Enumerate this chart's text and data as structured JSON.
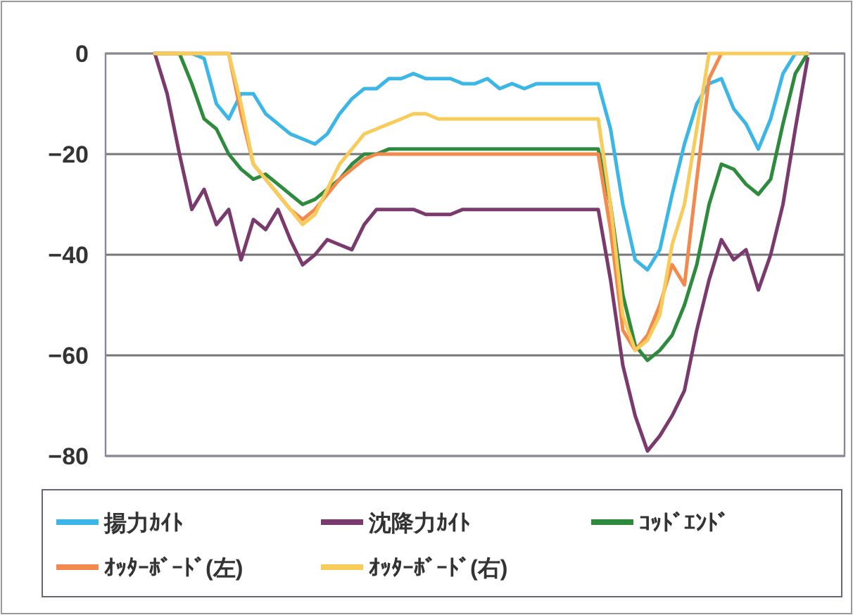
{
  "chart_data": {
    "type": "line",
    "categories": [
      null,
      null,
      null,
      null,
      null,
      null,
      null,
      null,
      null,
      null,
      null,
      null,
      null,
      null,
      null,
      null,
      null,
      null,
      null,
      null,
      null,
      null,
      null,
      null,
      null,
      null,
      null,
      null,
      null,
      null,
      null,
      null,
      null,
      null,
      null,
      null,
      null,
      null,
      null,
      null,
      null,
      null,
      null,
      null,
      null,
      null,
      null,
      null,
      null,
      null,
      null,
      null,
      null,
      null,
      null,
      null,
      null,
      null,
      null,
      null,
      null
    ],
    "ylim": [
      -80,
      0
    ],
    "yticks": [
      0,
      -20,
      -40,
      -60,
      -80
    ],
    "grid": "y",
    "legend": "bottom",
    "line_style": "solid",
    "series": [
      {
        "name": "揚力ｶｲﾄ",
        "color": "#3bb6e6",
        "values": [
          null,
          null,
          null,
          null,
          null,
          null,
          null,
          0,
          -1,
          -10,
          -13,
          -8,
          -8,
          -12,
          -14,
          -16,
          -17,
          -18,
          -16,
          -12,
          -9,
          -7,
          -7,
          -5,
          -5,
          -4,
          -5,
          -5,
          -5,
          -6,
          -6,
          -5,
          -7,
          -6,
          -7,
          -6,
          -6,
          -6,
          -6,
          -6,
          -6,
          -15,
          -30,
          -41,
          -43,
          -39,
          -28,
          -18,
          -10,
          -6,
          -5,
          -11,
          -14,
          -19,
          -13,
          -4,
          0,
          0,
          null,
          null,
          null
        ]
      },
      {
        "name": "沈降力ｶｲﾄ",
        "color": "#7b3a6e",
        "values": [
          null,
          null,
          null,
          null,
          0,
          -8,
          -20,
          -31,
          -27,
          -34,
          -31,
          -41,
          -33,
          -35,
          -31,
          -37,
          -42,
          -40,
          -37,
          -38,
          -39,
          -34,
          -31,
          -31,
          -31,
          -31,
          -32,
          -32,
          -32,
          -31,
          -31,
          -31,
          -31,
          -31,
          -31,
          -31,
          -31,
          -31,
          -31,
          -31,
          -31,
          -45,
          -62,
          -72,
          -79,
          -76,
          -72,
          -67,
          -55,
          -45,
          -37,
          -41,
          -39,
          -47,
          -40,
          -30,
          -15,
          -1,
          null,
          null,
          null
        ]
      },
      {
        "name": "ｺｯﾄﾞｴﾝﾄﾞ",
        "color": "#2e8b3e",
        "values": [
          null,
          null,
          null,
          null,
          0,
          0,
          0,
          -6,
          -13,
          -15,
          -20,
          -23,
          -25,
          -24,
          -26,
          -28,
          -30,
          -29,
          -27,
          -25,
          -22,
          -20,
          -20,
          -19,
          -19,
          -19,
          -19,
          -19,
          -19,
          -19,
          -19,
          -19,
          -19,
          -19,
          -19,
          -19,
          -19,
          -19,
          -19,
          -19,
          -19,
          -30,
          -48,
          -58,
          -61,
          -59,
          -56,
          -50,
          -42,
          -30,
          -22,
          -23,
          -26,
          -28,
          -25,
          -14,
          -4,
          0,
          null,
          null,
          null
        ]
      },
      {
        "name": "ｵｯﾀｰﾎﾞｰﾄﾞ(左)",
        "color": "#f4894e",
        "values": [
          null,
          null,
          null,
          null,
          0,
          0,
          0,
          0,
          0,
          0,
          0,
          -12,
          -22,
          -25,
          -28,
          -31,
          -33,
          -31,
          -28,
          -25,
          -23,
          -21,
          -20,
          -20,
          -20,
          -20,
          -20,
          -20,
          -20,
          -20,
          -20,
          -20,
          -20,
          -20,
          -20,
          -20,
          -20,
          -20,
          -20,
          -20,
          -20,
          -35,
          -55,
          -59,
          -56,
          -50,
          -42,
          -46,
          -25,
          -5,
          0,
          null,
          null,
          null,
          null,
          null,
          null,
          null,
          null,
          null,
          null
        ]
      },
      {
        "name": "ｵｯﾀｰﾎﾞｰﾄﾞ(右)",
        "color": "#f8cc5a",
        "values": [
          null,
          null,
          null,
          null,
          0,
          0,
          0,
          0,
          0,
          0,
          0,
          -10,
          -22,
          -25,
          -28,
          -31,
          -34,
          -32,
          -27,
          -22,
          -19,
          -16,
          -15,
          -14,
          -13,
          -12,
          -12,
          -13,
          -13,
          -13,
          -13,
          -13,
          -13,
          -13,
          -13,
          -13,
          -13,
          -13,
          -13,
          -13,
          -13,
          -30,
          -52,
          -59,
          -57,
          -52,
          -38,
          -30,
          -15,
          0,
          0,
          0,
          0,
          0,
          0,
          0,
          0,
          0,
          null,
          null,
          null
        ]
      }
    ]
  }
}
